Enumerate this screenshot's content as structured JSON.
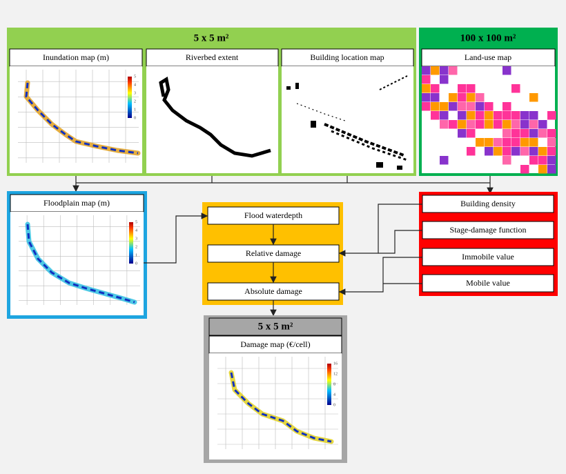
{
  "fine_scale": {
    "header": "5 x 5 m²",
    "panels": [
      "Inundation map (m)",
      "Riverbed extent",
      "Building location map"
    ],
    "colorbar": [
      "5",
      "4",
      "3",
      "2",
      "1",
      "0"
    ]
  },
  "coarse_scale": {
    "header": "100 x 100 m²",
    "panel": "Land-use map"
  },
  "floodplain": {
    "title": "Floodplain map (m)",
    "colorbar": [
      "5",
      "4",
      "3",
      "2",
      "1",
      "0"
    ]
  },
  "process": [
    "Flood waterdepth",
    "Relative damage",
    "Absolute damage"
  ],
  "inputs": [
    "Building density",
    "Stage-damage function",
    "Immobile value",
    "Mobile value"
  ],
  "output": {
    "header": "5 x 5 m²",
    "title": "Damage map (€/cell)",
    "colorbar": [
      "16",
      "12",
      "8",
      "4",
      "0"
    ]
  }
}
